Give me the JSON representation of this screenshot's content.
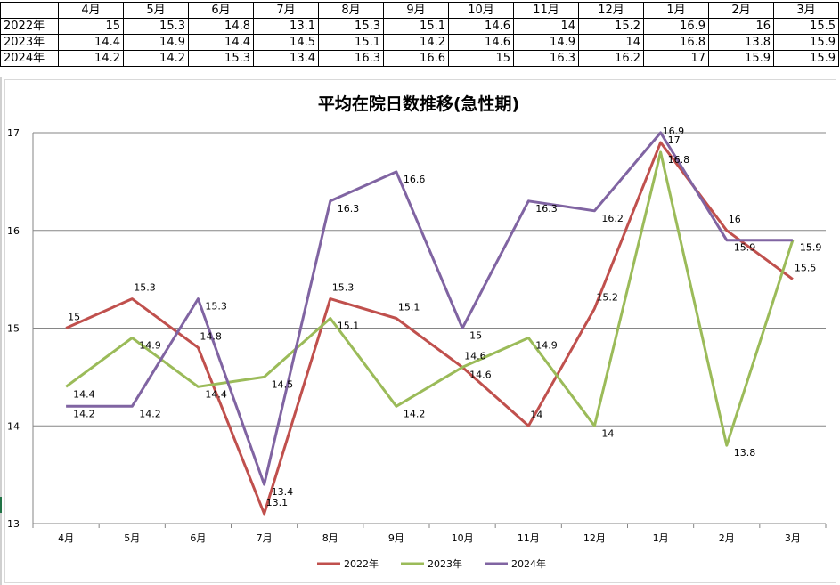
{
  "table": {
    "header": [
      "",
      "4月",
      "5月",
      "6月",
      "7月",
      "8月",
      "9月",
      "10月",
      "11月",
      "12月",
      "1月",
      "2月",
      "3月"
    ],
    "rows": [
      {
        "label": "2022年",
        "values": [
          "15",
          "15.3",
          "14.8",
          "13.1",
          "15.3",
          "15.1",
          "14.6",
          "14",
          "15.2",
          "16.9",
          "16",
          "15.5"
        ]
      },
      {
        "label": "2023年",
        "values": [
          "14.4",
          "14.9",
          "14.4",
          "14.5",
          "15.1",
          "14.2",
          "14.6",
          "14.9",
          "14",
          "16.8",
          "13.8",
          "15.9"
        ]
      },
      {
        "label": "2024年",
        "values": [
          "14.2",
          "14.2",
          "15.3",
          "13.4",
          "16.3",
          "16.6",
          "15",
          "16.3",
          "16.2",
          "17",
          "15.9",
          "15.9"
        ]
      }
    ]
  },
  "chart_data": {
    "type": "line",
    "title": "平均在院日数推移(急性期)",
    "categories": [
      "4月",
      "5月",
      "6月",
      "7月",
      "8月",
      "9月",
      "10月",
      "11月",
      "12月",
      "1月",
      "2月",
      "3月"
    ],
    "ylim": [
      13,
      17
    ],
    "yticks": [
      13,
      14,
      15,
      16,
      17
    ],
    "grid": true,
    "legend_position": "bottom",
    "series": [
      {
        "name": "2022年",
        "color": "#c0504d",
        "values": [
          15,
          15.3,
          14.8,
          13.1,
          15.3,
          15.1,
          14.6,
          14,
          15.2,
          16.9,
          16,
          15.5
        ]
      },
      {
        "name": "2023年",
        "color": "#9bbb59",
        "values": [
          14.4,
          14.9,
          14.4,
          14.5,
          15.1,
          14.2,
          14.6,
          14.9,
          14,
          16.8,
          13.8,
          15.9
        ]
      },
      {
        "name": "2024年",
        "color": "#8064a2",
        "values": [
          14.2,
          14.2,
          15.3,
          13.4,
          16.3,
          16.6,
          15,
          16.3,
          16.2,
          17,
          15.9,
          15.9
        ]
      }
    ]
  }
}
